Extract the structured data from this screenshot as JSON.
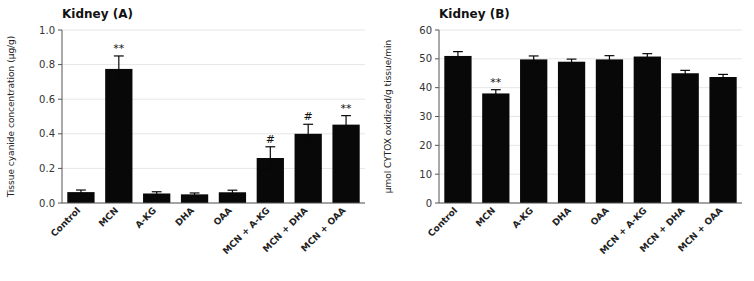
{
  "chart_data": [
    {
      "type": "bar",
      "title": "Kidney (A)",
      "y_label": "Tissue cyanide concentration (μg/g)",
      "categories": [
        "Control",
        "MCN",
        "A-KG",
        "DHA",
        "OAA",
        "MCN + A-KG",
        "MCN + DHA",
        "MCN + OAA"
      ],
      "values": [
        0.063,
        0.775,
        0.055,
        0.05,
        0.062,
        0.26,
        0.4,
        0.453
      ],
      "errors": [
        0.012,
        0.075,
        0.01,
        0.008,
        0.012,
        0.065,
        0.055,
        0.052
      ],
      "color": "#080808",
      "ylim": [
        0,
        1.0
      ],
      "yticks": [
        {
          "value": 0.0,
          "label": "0.0"
        },
        0.2,
        0.4,
        0.6,
        0.8,
        {
          "value": 1.0,
          "label": "1.0"
        }
      ],
      "annotations": [
        {
          "category": "MCN",
          "text": "**"
        },
        {
          "category": "MCN + A-KG",
          "text": "#"
        },
        {
          "category": "MCN + DHA",
          "text": "#"
        },
        {
          "category": "MCN + OAA",
          "text": "**"
        }
      ]
    },
    {
      "type": "bar",
      "title": "Kidney (B)",
      "y_label": "μmol CYTOX oxidized/g tissue/min",
      "categories": [
        "Control",
        "MCN",
        "A-KG",
        "DHA",
        "OAA",
        "MCN + A-KG",
        "MCN + DHA",
        "MCN + OAA"
      ],
      "values": [
        51.0,
        38.0,
        49.8,
        49.0,
        49.8,
        50.8,
        45.0,
        43.7
      ],
      "errors": [
        1.5,
        1.3,
        1.2,
        0.9,
        1.3,
        1.0,
        1.0,
        0.9
      ],
      "color": "#080808",
      "ylim": [
        0,
        60
      ],
      "yticks": [
        0,
        10,
        20,
        30,
        40,
        50,
        60
      ],
      "annotations": [
        {
          "category": "MCN",
          "text": "**"
        }
      ]
    }
  ]
}
